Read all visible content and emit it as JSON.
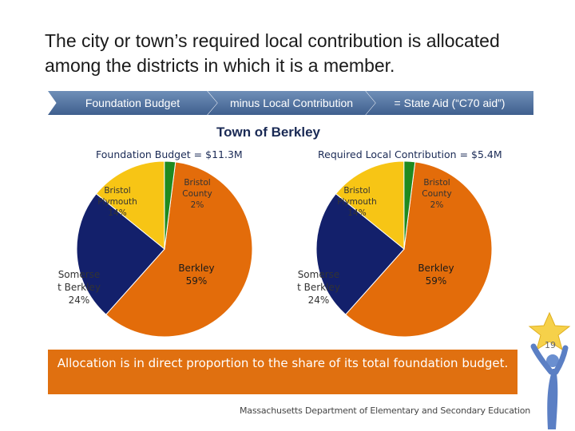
{
  "slide": {
    "title": "The city or town’s required local contribution is allocated among the districts in which it is a member.",
    "chevrons": [
      "Foundation Budget",
      "minus Local Contribution",
      "= State Aid (“C70 aid”)"
    ],
    "town_title": "Town of Berkley",
    "note": "Allocation is in direct proportion to the share of its total foundation budget.",
    "footer": "Massachusetts Department of Elementary and Secondary Education",
    "page_number": "19"
  },
  "colors": {
    "berkley": "#e36c0a",
    "somerset_berkley": "#13206b",
    "bristol_plymouth": "#f7c515",
    "bristol_county": "#1f8a1f",
    "chevron": "#4f6f9e",
    "note_box": "#e07010"
  },
  "chart_data": [
    {
      "type": "pie",
      "title": "Foundation Budget = $11.3M",
      "categories": [
        "Berkley",
        "Somerset Berkley",
        "Bristol Plymouth",
        "Bristol County"
      ],
      "values": [
        59,
        24,
        14,
        2
      ],
      "labels": [
        {
          "name": "Berkley",
          "pct": "59%"
        },
        {
          "name": "Somerse t Berkley",
          "pct": "24%"
        },
        {
          "name": "Bristol Plymouth",
          "pct": "14%"
        },
        {
          "name": "Bristol County",
          "pct": "2%"
        }
      ]
    },
    {
      "type": "pie",
      "title": "Required Local Contribution = $5.4M",
      "categories": [
        "Berkley",
        "Somerset Berkley",
        "Bristol Plymouth",
        "Bristol County"
      ],
      "values": [
        59,
        24,
        14,
        2
      ],
      "labels": [
        {
          "name": "Berkley",
          "pct": "59%"
        },
        {
          "name": "Somerse t Berkley",
          "pct": "24%"
        },
        {
          "name": "Bristol Plymouth",
          "pct": "14%"
        },
        {
          "name": "Bristol County",
          "pct": "2%"
        }
      ]
    }
  ]
}
